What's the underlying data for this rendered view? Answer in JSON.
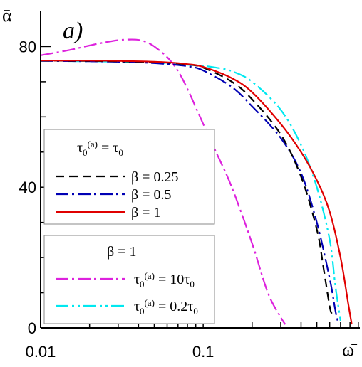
{
  "chart_data": {
    "type": "line",
    "panel_label": "a)",
    "xlabel": "ω̄",
    "ylabel": "ᾱ",
    "xscale": "log",
    "xlim": [
      0.01,
      0.92
    ],
    "ylim": [
      0,
      90
    ],
    "x_ticks": [
      {
        "value": 0.01,
        "label": "0.01"
      },
      {
        "value": 0.1,
        "label": "0.1"
      }
    ],
    "y_ticks": [
      {
        "value": 0,
        "label": "0"
      },
      {
        "value": 40,
        "label": "40"
      },
      {
        "value": 80,
        "label": "80"
      }
    ],
    "legend_groups": [
      {
        "title": {
          "main": "τ",
          "sub": "0",
          "sup": "(a)",
          "rest": " = τ",
          "rest_sub": "0"
        },
        "placement": "left-middle"
      },
      {
        "title": {
          "main": "β = 1"
        },
        "placement": "left-bottom"
      }
    ],
    "series": [
      {
        "name": "β = 0.25",
        "group": 0,
        "color": "#000000",
        "dash": "12,7",
        "x": [
          0.01,
          0.02,
          0.04,
          0.06,
          0.08,
          0.1,
          0.15,
          0.2,
          0.3,
          0.4,
          0.5,
          0.55,
          0.6,
          0.62
        ],
        "y": [
          76,
          75.9,
          75.7,
          75.4,
          74.9,
          74,
          70,
          65,
          55,
          43,
          28,
          17,
          6,
          4
        ]
      },
      {
        "name": "β = 0.5",
        "group": 0,
        "color": "#0000b4",
        "dash": "18,5,3,5",
        "x": [
          0.01,
          0.02,
          0.04,
          0.06,
          0.08,
          0.1,
          0.15,
          0.2,
          0.3,
          0.4,
          0.5,
          0.6,
          0.65,
          0.68
        ],
        "y": [
          75.9,
          75.8,
          75.5,
          75,
          74.4,
          73.2,
          68.5,
          63,
          54,
          44,
          30,
          14,
          5,
          1
        ]
      },
      {
        "name": "β = 1",
        "group": 0,
        "color": "#e00000",
        "dash": "",
        "x": [
          0.01,
          0.02,
          0.04,
          0.06,
          0.08,
          0.1,
          0.15,
          0.2,
          0.3,
          0.4,
          0.5,
          0.6,
          0.7,
          0.78,
          0.82
        ],
        "y": [
          76,
          76,
          75.8,
          75.5,
          75,
          74.2,
          71,
          67,
          58,
          50,
          42,
          33,
          20,
          7,
          1
        ]
      },
      {
        "name": "τ₀⁽ᵃ⁾ = 10τ₀",
        "legend_label": {
          "main": "τ",
          "sub": "0",
          "sup": "(a)",
          "rest": " = 10τ",
          "rest_sub": "0"
        },
        "group": 1,
        "color": "#dd22dd",
        "dash": "18,5,3,5",
        "x": [
          0.01,
          0.015,
          0.02,
          0.025,
          0.03,
          0.035,
          0.04,
          0.045,
          0.05,
          0.06,
          0.07,
          0.08,
          0.1,
          0.12,
          0.15,
          0.2,
          0.25,
          0.3,
          0.32
        ],
        "y": [
          77.5,
          79,
          80.3,
          81.2,
          81.8,
          82,
          81.9,
          81.2,
          80,
          77,
          73,
          68,
          58,
          50,
          40,
          24,
          10,
          3,
          1
        ]
      },
      {
        "name": "τ₀⁽ᵃ⁾ = 0.2τ₀",
        "legend_label": {
          "main": "τ",
          "sub": "0",
          "sup": "(a)",
          "rest": " = 0.2τ",
          "rest_sub": "0"
        },
        "group": 1,
        "color": "#00e8f0",
        "dash": "18,5,3,5,3,5",
        "x": [
          0.01,
          0.02,
          0.04,
          0.06,
          0.08,
          0.1,
          0.12,
          0.15,
          0.2,
          0.3,
          0.4,
          0.5,
          0.6,
          0.65,
          0.7
        ],
        "y": [
          75.9,
          75.8,
          75.6,
          75.2,
          74.8,
          74.5,
          74,
          73,
          70,
          62,
          52,
          40,
          25,
          12,
          2
        ]
      }
    ]
  }
}
